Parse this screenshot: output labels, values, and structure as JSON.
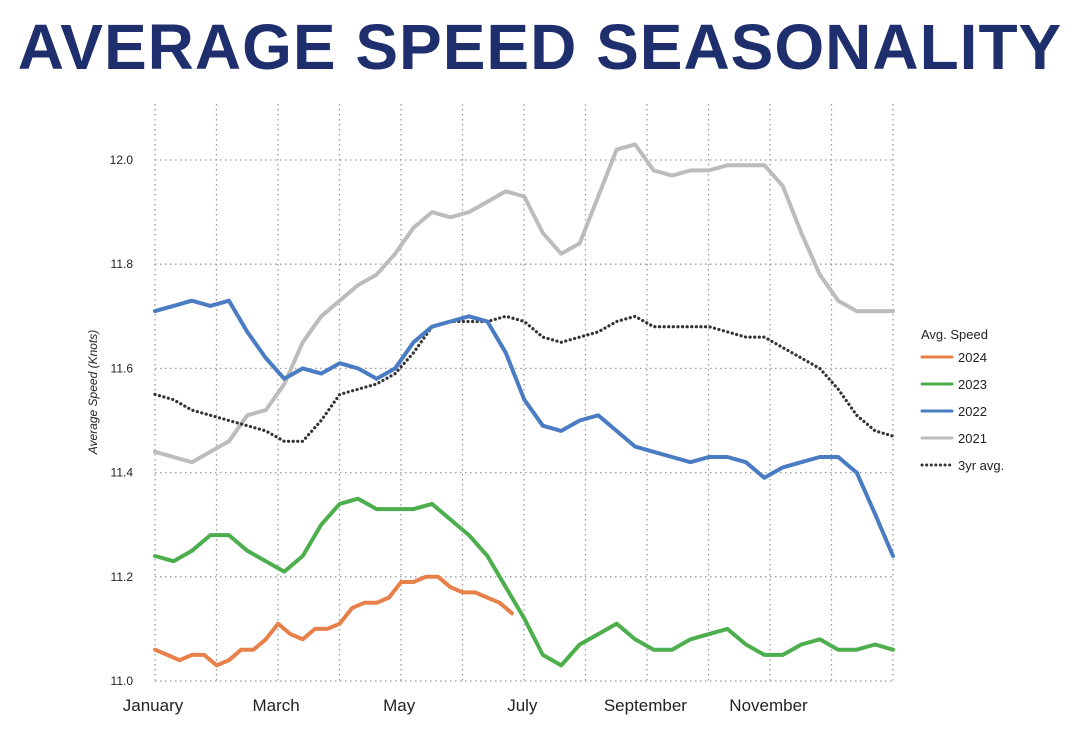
{
  "chart_data": {
    "type": "line",
    "title": "AVERAGE SPEED SEASONALITY",
    "ylabel": "Average Speed (Knots)",
    "xlabel": "",
    "ylim": [
      11.0,
      12.1
    ],
    "yticks": [
      "11.0",
      "11.2",
      "11.4",
      "11.6",
      "11.8",
      "12.0"
    ],
    "ytick_values": [
      11.0,
      11.2,
      11.4,
      11.6,
      11.8,
      12.0
    ],
    "month_labels": [
      "January",
      "March",
      "May",
      "July",
      "September",
      "November"
    ],
    "month_positions": [
      0,
      2,
      4,
      6,
      8,
      10
    ],
    "x_range": [
      0,
      11.99
    ],
    "legend": {
      "title": "Avg. Speed",
      "position": "right"
    },
    "grid": true,
    "series": [
      {
        "name": "2024",
        "color": "#e8804a",
        "style": "solid",
        "x": [
          0,
          0.2,
          0.4,
          0.6,
          0.8,
          1.0,
          1.2,
          1.4,
          1.6,
          1.8,
          2.0,
          2.2,
          2.4,
          2.6,
          2.8,
          3.0,
          3.2,
          3.4,
          3.6,
          3.8,
          4.0,
          4.2,
          4.4,
          4.6,
          4.8,
          5.0,
          5.2,
          5.4,
          5.6,
          5.8
        ],
        "y": [
          11.06,
          11.05,
          11.04,
          11.05,
          11.05,
          11.03,
          11.04,
          11.06,
          11.06,
          11.08,
          11.11,
          11.09,
          11.08,
          11.1,
          11.1,
          11.11,
          11.14,
          11.15,
          11.15,
          11.16,
          11.19,
          11.19,
          11.2,
          11.2,
          11.18,
          11.17,
          11.17,
          11.16,
          11.15,
          11.13
        ]
      },
      {
        "name": "2023",
        "color": "#4cae4c",
        "style": "solid",
        "x": [
          0,
          0.3,
          0.6,
          0.9,
          1.2,
          1.5,
          1.8,
          2.1,
          2.4,
          2.7,
          3.0,
          3.3,
          3.6,
          3.9,
          4.2,
          4.5,
          4.8,
          5.1,
          5.4,
          5.7,
          6.0,
          6.3,
          6.6,
          6.9,
          7.2,
          7.5,
          7.8,
          8.1,
          8.4,
          8.7,
          9.0,
          9.3,
          9.6,
          9.9,
          10.2,
          10.5,
          10.8,
          11.1,
          11.4,
          11.7,
          11.99
        ],
        "y": [
          11.24,
          11.23,
          11.25,
          11.28,
          11.28,
          11.25,
          11.23,
          11.21,
          11.24,
          11.3,
          11.34,
          11.35,
          11.33,
          11.33,
          11.33,
          11.34,
          11.31,
          11.28,
          11.24,
          11.18,
          11.12,
          11.05,
          11.03,
          11.07,
          11.09,
          11.11,
          11.08,
          11.06,
          11.06,
          11.08,
          11.09,
          11.1,
          11.07,
          11.05,
          11.05,
          11.07,
          11.08,
          11.06,
          11.06,
          11.07,
          11.06
        ]
      },
      {
        "name": "2022",
        "color": "#4a7cc4",
        "style": "solid",
        "x": [
          0,
          0.3,
          0.6,
          0.9,
          1.2,
          1.5,
          1.8,
          2.1,
          2.4,
          2.7,
          3.0,
          3.3,
          3.6,
          3.9,
          4.2,
          4.5,
          4.8,
          5.1,
          5.4,
          5.7,
          6.0,
          6.3,
          6.6,
          6.9,
          7.2,
          7.5,
          7.8,
          8.1,
          8.4,
          8.7,
          9.0,
          9.3,
          9.6,
          9.9,
          10.2,
          10.5,
          10.8,
          11.1,
          11.4,
          11.7,
          11.99
        ],
        "y": [
          11.71,
          11.72,
          11.73,
          11.72,
          11.73,
          11.67,
          11.62,
          11.58,
          11.6,
          11.59,
          11.61,
          11.6,
          11.58,
          11.6,
          11.65,
          11.68,
          11.69,
          11.7,
          11.69,
          11.63,
          11.54,
          11.49,
          11.48,
          11.5,
          11.51,
          11.48,
          11.45,
          11.44,
          11.43,
          11.42,
          11.43,
          11.43,
          11.42,
          11.39,
          11.41,
          11.42,
          11.43,
          11.43,
          11.4,
          11.32,
          11.24
        ]
      },
      {
        "name": "2021",
        "color": "#bcbcbc",
        "style": "solid",
        "x": [
          0,
          0.3,
          0.6,
          0.9,
          1.2,
          1.5,
          1.8,
          2.1,
          2.4,
          2.7,
          3.0,
          3.3,
          3.6,
          3.9,
          4.2,
          4.5,
          4.8,
          5.1,
          5.4,
          5.7,
          6.0,
          6.3,
          6.6,
          6.9,
          7.2,
          7.5,
          7.8,
          8.1,
          8.4,
          8.7,
          9.0,
          9.3,
          9.6,
          9.9,
          10.2,
          10.5,
          10.8,
          11.1,
          11.4,
          11.7,
          11.99
        ],
        "y": [
          11.44,
          11.43,
          11.42,
          11.44,
          11.46,
          11.51,
          11.52,
          11.57,
          11.65,
          11.7,
          11.73,
          11.76,
          11.78,
          11.82,
          11.87,
          11.9,
          11.89,
          11.9,
          11.92,
          11.94,
          11.93,
          11.86,
          11.82,
          11.84,
          11.93,
          12.02,
          12.03,
          11.98,
          11.97,
          11.98,
          11.98,
          11.99,
          11.99,
          11.99,
          11.95,
          11.86,
          11.78,
          11.73,
          11.71,
          11.71,
          11.71
        ]
      },
      {
        "name": "3yr avg.",
        "color": "#333333",
        "style": "dotted",
        "x": [
          0,
          0.3,
          0.6,
          0.9,
          1.2,
          1.5,
          1.8,
          2.1,
          2.4,
          2.7,
          3.0,
          3.3,
          3.6,
          3.9,
          4.2,
          4.5,
          4.8,
          5.1,
          5.4,
          5.7,
          6.0,
          6.3,
          6.6,
          6.9,
          7.2,
          7.5,
          7.8,
          8.1,
          8.4,
          8.7,
          9.0,
          9.3,
          9.6,
          9.9,
          10.2,
          10.5,
          10.8,
          11.1,
          11.4,
          11.7,
          11.99
        ],
        "y": [
          11.55,
          11.54,
          11.52,
          11.51,
          11.5,
          11.49,
          11.48,
          11.46,
          11.46,
          11.5,
          11.55,
          11.56,
          11.57,
          11.59,
          11.63,
          11.68,
          11.69,
          11.69,
          11.69,
          11.7,
          11.69,
          11.66,
          11.65,
          11.66,
          11.67,
          11.69,
          11.7,
          11.68,
          11.68,
          11.68,
          11.68,
          11.67,
          11.66,
          11.66,
          11.64,
          11.62,
          11.6,
          11.56,
          11.51,
          11.48,
          11.47
        ]
      }
    ]
  }
}
